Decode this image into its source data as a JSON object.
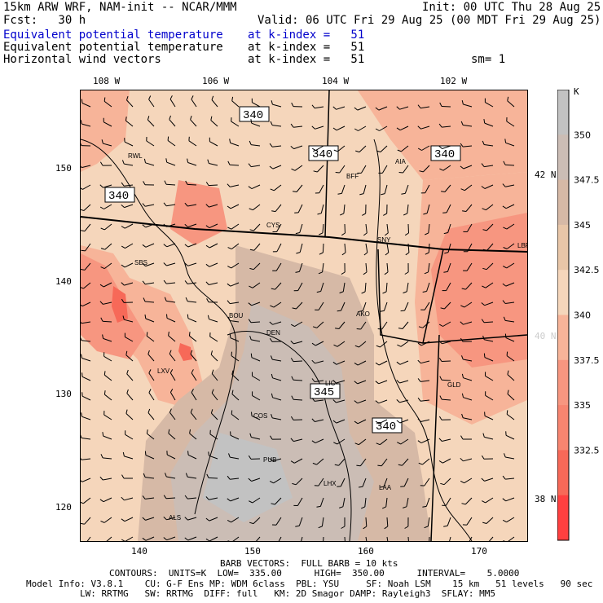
{
  "header": {
    "model_line": "15km ARW WRF, NAM-init -- NCAR/MMM",
    "init_line": "Init: 00 UTC Thu 28 Aug 25",
    "fcst_line": "Fcst:   30 h",
    "valid_line": "Valid: 06 UTC Fri 29 Aug 25 (00 MDT Fri 29 Aug 25)",
    "fields": [
      {
        "name": "Equivalent potential temperature",
        "level": "at k-index =   51",
        "color": "#0000cc"
      },
      {
        "name": "Equivalent potential temperature",
        "level": "at k-index =   51",
        "color": "#000000"
      },
      {
        "name": "Horizontal wind vectors",
        "level": "at k-index =   51",
        "color": "#000000"
      }
    ],
    "sm_text": "sm= 1"
  },
  "lon_ticks_top": [
    "108 W",
    "106 W",
    "104 W",
    "102 W"
  ],
  "lat_ticks_right": [
    "42 N",
    "40 N",
    "38 N"
  ],
  "grid_y_ticks": [
    "150",
    "140",
    "130",
    "120"
  ],
  "grid_x_ticks": [
    "140",
    "150",
    "160",
    "170"
  ],
  "colorbar": {
    "unit": "K",
    "labels": [
      "350",
      "347.5",
      "345",
      "342.5",
      "340",
      "337.5",
      "335",
      "332.5"
    ],
    "colors": [
      "#c2c2c2",
      "#cbbdb5",
      "#d6b9a6",
      "#e8c6a8",
      "#f5d6bb",
      "#f7b499",
      "#f79680",
      "#f78570",
      "#f76958",
      "#ff4040"
    ]
  },
  "contour_labels": [
    "340",
    "340",
    "340",
    "340",
    "345",
    "340"
  ],
  "stations": [
    "RWL",
    "CYS",
    "BFF",
    "AIA",
    "SNY",
    "LBF",
    "SBS",
    "BOU",
    "DEN",
    "AKO",
    "LXV",
    "GLD",
    "COS",
    "LHX",
    "LAA",
    "PUB",
    "ALS",
    "LIC"
  ],
  "footer": {
    "barb_line": "BARB VECTORS:  FULL BARB = 10 kts",
    "contour_line": "CONTOURS:  UNITS=K  LOW=  335.00      HIGH=  350.00      INTERVAL=    5.0000",
    "model_info_1": "Model Info: V3.8.1    CU: G-F Ens MP: WDM 6class  PBL: YSU     SF: Noah LSM    15 km   51 levels   90 sec",
    "model_info_2": "LW: RRTMG   SW: RRTMG  DIFF: full   KM: 2D Smagor DAMP: Rayleigh3  SFLAY: MM5"
  }
}
